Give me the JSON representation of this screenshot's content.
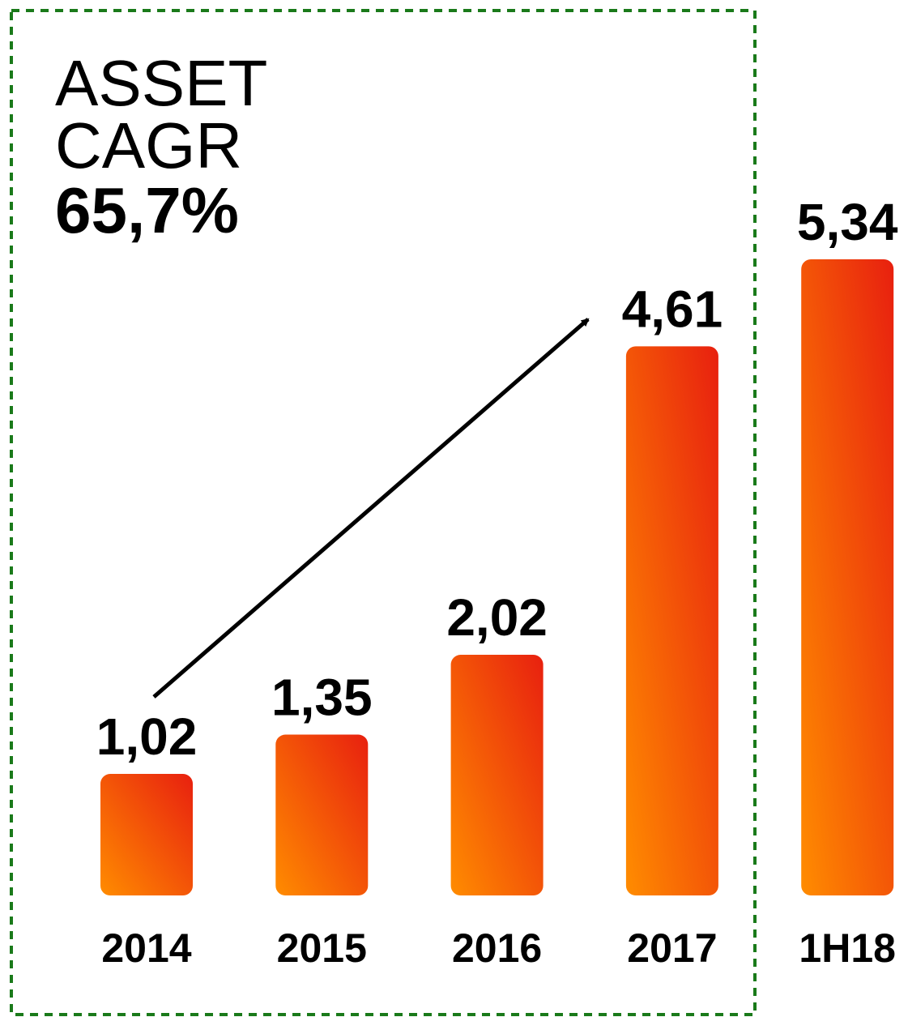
{
  "chart_data": {
    "type": "bar",
    "annotation_lines": [
      "ASSET",
      "CAGR",
      "65,7%"
    ],
    "categories": [
      "2014",
      "2015",
      "2016",
      "2017",
      "1H18"
    ],
    "values": [
      1.02,
      1.35,
      2.02,
      4.61,
      5.34
    ],
    "value_labels": [
      "1,02",
      "1,35",
      "2,02",
      "4,61",
      "5,34"
    ],
    "color": [
      "#ff8c00",
      "#e8200f"
    ]
  }
}
